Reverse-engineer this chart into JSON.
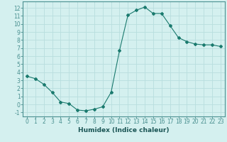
{
  "x": [
    0,
    1,
    2,
    3,
    4,
    5,
    6,
    7,
    8,
    9,
    10,
    11,
    12,
    13,
    14,
    15,
    16,
    17,
    18,
    19,
    20,
    21,
    22,
    23
  ],
  "y": [
    3.5,
    3.2,
    2.5,
    1.5,
    0.3,
    0.1,
    -0.7,
    -0.8,
    -0.6,
    -0.3,
    1.5,
    6.7,
    11.1,
    11.7,
    12.1,
    11.3,
    11.3,
    9.8,
    8.3,
    7.8,
    7.5,
    7.4,
    7.4,
    7.2
  ],
  "line_color": "#1a7a6e",
  "marker": "D",
  "marker_size": 2.0,
  "bg_color": "#d4f0ef",
  "grid_color": "#b8dede",
  "axis_color": "#4a9090",
  "xlabel": "Humidex (Indice chaleur)",
  "xlim": [
    -0.5,
    23.5
  ],
  "ylim": [
    -1.5,
    12.8
  ],
  "xticks": [
    0,
    1,
    2,
    3,
    4,
    5,
    6,
    7,
    8,
    9,
    10,
    11,
    12,
    13,
    14,
    15,
    16,
    17,
    18,
    19,
    20,
    21,
    22,
    23
  ],
  "yticks": [
    -1,
    0,
    1,
    2,
    3,
    4,
    5,
    6,
    7,
    8,
    9,
    10,
    11,
    12
  ],
  "xlabel_fontsize": 6.5,
  "tick_fontsize": 5.5
}
